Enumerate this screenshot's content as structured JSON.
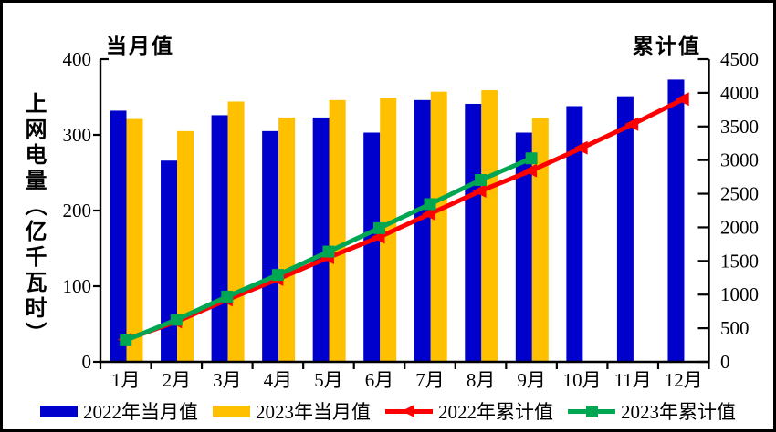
{
  "figure": {
    "left_axis_header": "当月值",
    "right_axis_header": "累计值",
    "y_axis_title": "上网电量（亿千瓦时）"
  },
  "chart_data": {
    "type": "bar",
    "subtype": "bar-line combo, dual axis",
    "categories": [
      "1月",
      "2月",
      "3月",
      "4月",
      "5月",
      "6月",
      "7月",
      "8月",
      "9月",
      "10月",
      "11月",
      "12月"
    ],
    "series": [
      {
        "name": "2022年当月值",
        "kind": "bar",
        "axis": "left",
        "color": "#0000CC",
        "marker": "none",
        "values": [
          332,
          266,
          326,
          305,
          323,
          303,
          346,
          341,
          303,
          338,
          351,
          373
        ]
      },
      {
        "name": "2023年当月值",
        "kind": "bar",
        "axis": "left",
        "color": "#FFC000",
        "marker": "none",
        "values": [
          321,
          305,
          344,
          323,
          346,
          349,
          357,
          359,
          322,
          null,
          null,
          null
        ]
      },
      {
        "name": "2022年累计值",
        "kind": "line",
        "axis": "right",
        "color": "#FF0000",
        "marker": "triangle-left",
        "values": [
          332,
          598,
          924,
          1229,
          1552,
          1855,
          2201,
          2542,
          2845,
          3183,
          3534,
          3907
        ]
      },
      {
        "name": "2023年累计值",
        "kind": "line",
        "axis": "right",
        "color": "#00A651",
        "marker": "square",
        "values": [
          321,
          626,
          970,
          1293,
          1639,
          1988,
          2345,
          2704,
          3026,
          null,
          null,
          null
        ]
      }
    ],
    "left_axis": {
      "title": "当月值",
      "min": 0,
      "max": 400,
      "step": 100,
      "tick_labels": [
        "0",
        "100",
        "200",
        "300",
        "400"
      ]
    },
    "right_axis": {
      "title": "累计值",
      "min": 0,
      "max": 4500,
      "step": 500,
      "tick_labels": [
        "0",
        "500",
        "1000",
        "1500",
        "2000",
        "2500",
        "3000",
        "3500",
        "4000",
        "4500"
      ]
    },
    "y_axis_label": "上网电量（亿千瓦时）",
    "legend_position": "bottom",
    "grid": false
  }
}
